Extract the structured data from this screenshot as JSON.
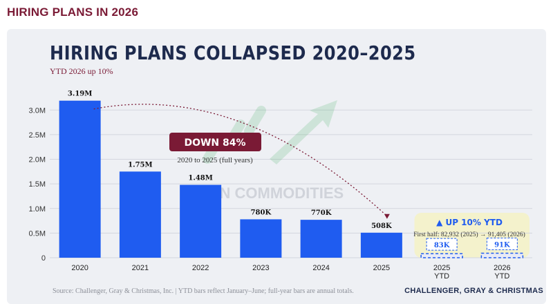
{
  "banner": {
    "title": "HIRING PLANS IN 2026"
  },
  "footer": {
    "source": "Source: Challenger, Gray & Christmas, Inc. | YTD bars reflect January–June; full-year bars are annual totals.",
    "brand": "CHALLENGER, GRAY & CHRISTMAS"
  },
  "watermark": "VN COMMODITIES",
  "colors": {
    "bar": "#1f5cf0",
    "ytd_bar": "#e8eaf6",
    "ytd_bar_border": "#1f5cf0",
    "ytd_highlight": "#f4f2cc",
    "down_badge": "#7a1a35",
    "accent_text": "#7a1a35",
    "title": "#1d2a4d"
  },
  "chart_data": {
    "type": "bar",
    "title": "HIRING PLANS COLLAPSED 2020–2025",
    "subtitle": "YTD 2026 up 10%",
    "categories": [
      "2020",
      "2021",
      "2022",
      "2023",
      "2024",
      "2025",
      "2025\nYTD",
      "2026\nYTD"
    ],
    "values": [
      3190000,
      1750000,
      1480000,
      780000,
      770000,
      508000,
      82932,
      91405
    ],
    "value_labels": [
      "3.19M",
      "1.75M",
      "1.48M",
      "780K",
      "770K",
      "508K",
      "83K",
      "91K"
    ],
    "ytd_flags": [
      false,
      false,
      false,
      false,
      false,
      false,
      true,
      true
    ],
    "ylim": [
      0,
      3200000
    ],
    "yticks": [
      0,
      500000,
      1000000,
      1500000,
      2000000,
      2500000,
      3000000
    ],
    "ytick_labels": [
      "0",
      "0.5M",
      "1.0M",
      "1.5M",
      "2.0M",
      "2.5M",
      "3.0M"
    ],
    "grid": true,
    "annotations": {
      "down_badge": "DOWN 84%",
      "down_note": "2020 to 2025 (full years)",
      "up_badge": "▲ UP 10% YTD",
      "up_note": "First half: 82,932 (2025) → 91,405 (2026)"
    }
  }
}
